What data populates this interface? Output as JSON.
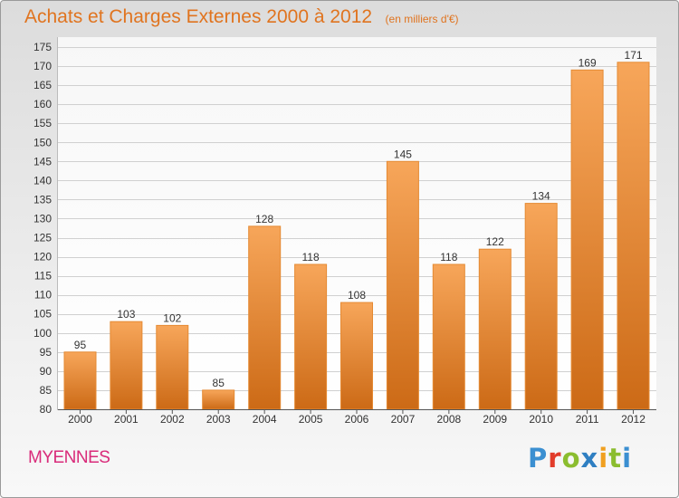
{
  "header": {
    "title": "Achats et Charges Externes 2000 à 2012",
    "unit": "(en milliers d'€)"
  },
  "footer": {
    "commune": "MYENNES",
    "brand": "Proxiti"
  },
  "colors": {
    "title": "#e0741f",
    "commune": "#d92b7a",
    "bar_top": "#f7a65a",
    "bar_bottom": "#cc6a16"
  },
  "chart_data": {
    "type": "bar",
    "title": "Achats et Charges Externes 2000 à 2012",
    "subtitle": "(en milliers d'€)",
    "categories": [
      "2000",
      "2001",
      "2002",
      "2003",
      "2004",
      "2005",
      "2006",
      "2007",
      "2008",
      "2009",
      "2010",
      "2011",
      "2012"
    ],
    "values": [
      95,
      103,
      102,
      85,
      128,
      118,
      108,
      145,
      118,
      122,
      134,
      169,
      171
    ],
    "ylim": [
      80,
      175
    ],
    "ytick_step": 5,
    "grid": true,
    "data_labels": true
  }
}
